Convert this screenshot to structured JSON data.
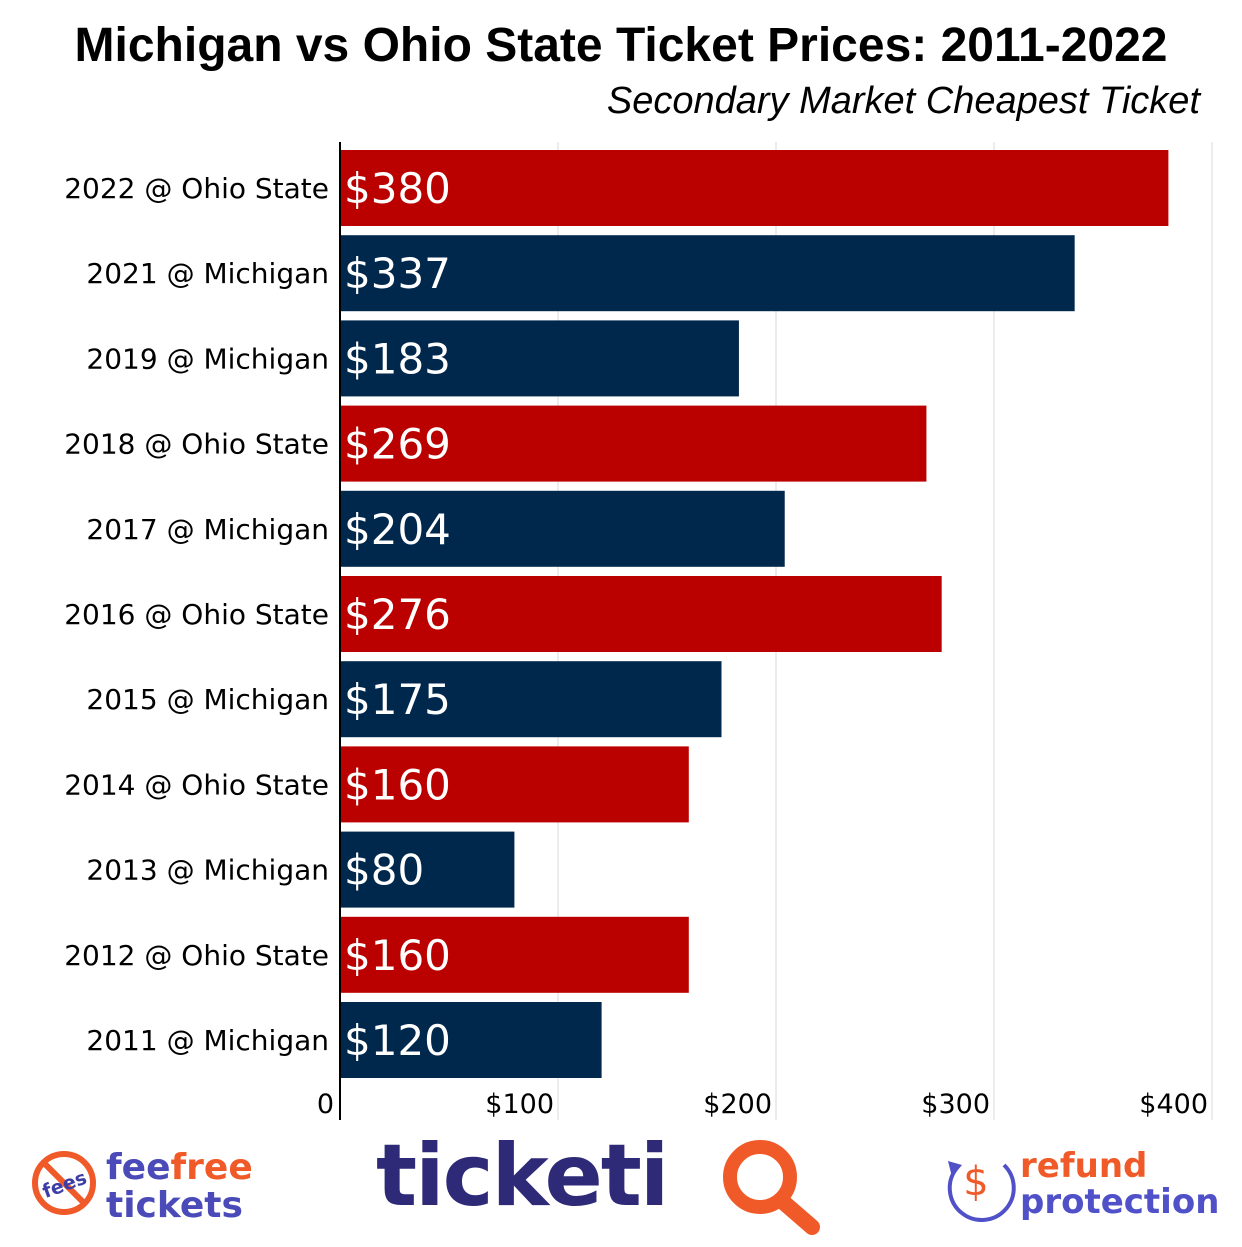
{
  "title": "Michigan vs Ohio State Ticket Prices: 2011-2022",
  "subtitle": "Secondary Market Cheapest Ticket",
  "colors": {
    "ohio_state": "#bb0000",
    "michigan": "#00274c",
    "grid": "#d9d9d9",
    "axis": "#000000"
  },
  "chart_data": {
    "type": "bar",
    "orientation": "horizontal",
    "categories": [
      "2022 @ Ohio State",
      "2021 @ Michigan",
      "2019 @ Michigan",
      "2018 @ Ohio State",
      "2017 @ Michigan",
      "2016 @ Ohio State",
      "2015 @ Michigan",
      "2014 @ Ohio State",
      "2013 @ Michigan",
      "2012 @ Ohio State",
      "2011 @ Michigan"
    ],
    "values": [
      380,
      337,
      183,
      269,
      204,
      276,
      175,
      160,
      80,
      160,
      120
    ],
    "data_labels": [
      "$380",
      "$337",
      "$183",
      "$269",
      "$204",
      "$276",
      "$175",
      "$160",
      "$80",
      "$160",
      "$120"
    ],
    "venue": [
      "ohio_state",
      "michigan",
      "michigan",
      "ohio_state",
      "michigan",
      "ohio_state",
      "michigan",
      "ohio_state",
      "michigan",
      "ohio_state",
      "michigan"
    ],
    "xlim": [
      0,
      400
    ],
    "xticks": [
      0,
      100,
      200,
      300,
      400
    ],
    "xtick_labels": [
      "0",
      "$100",
      "$200",
      "$300",
      "$400"
    ],
    "grid": true,
    "xlabel": "",
    "ylabel": ""
  },
  "footer": {
    "left_logo": {
      "badge_text": "fees",
      "line1_a": "fee",
      "line1_b": "free",
      "line2": "tickets"
    },
    "center_logo": {
      "text_main": "ticketi",
      "text_accent": "Q"
    },
    "right_logo": {
      "icon_text": "$",
      "line1": "refund",
      "line2": "protection"
    }
  }
}
